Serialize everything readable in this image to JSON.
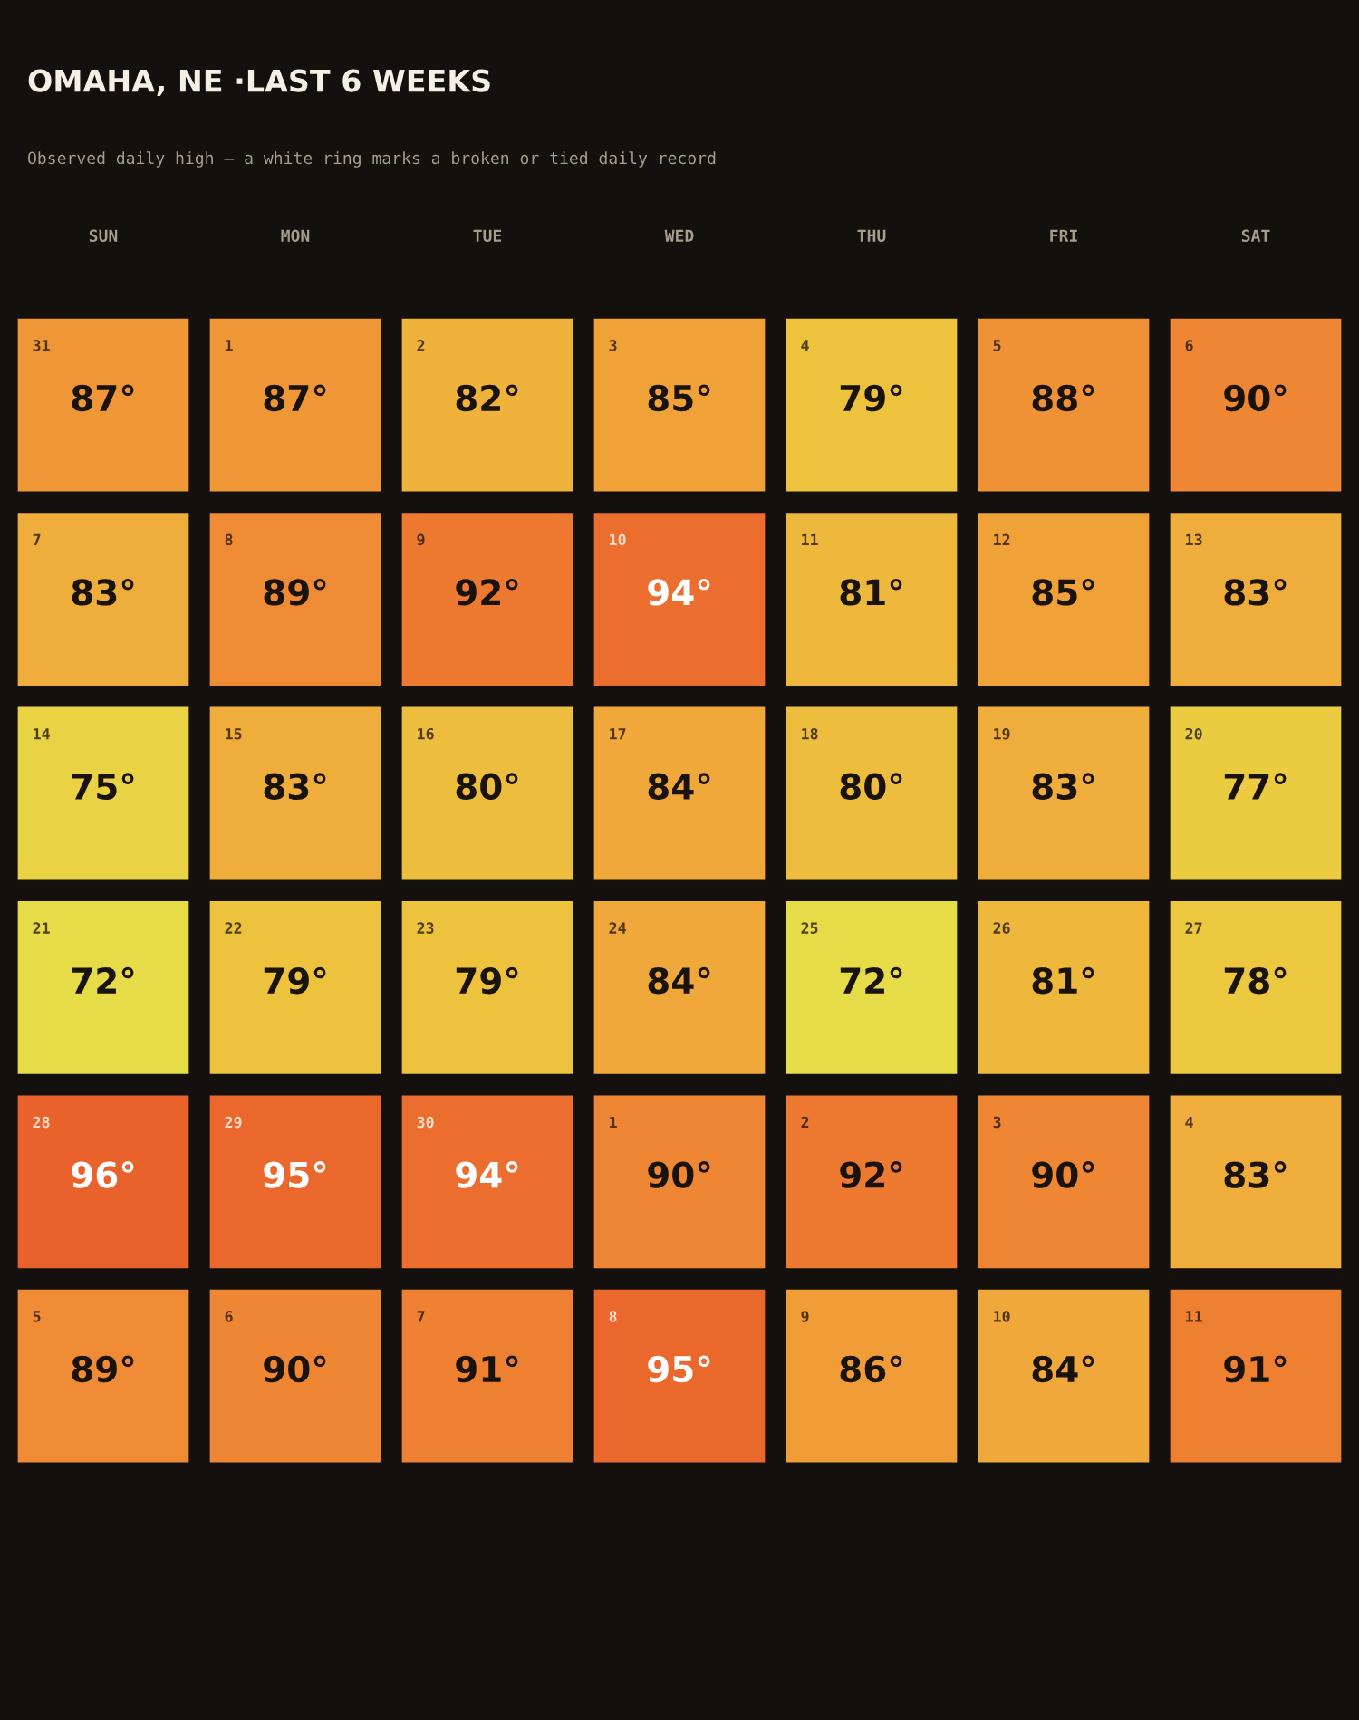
{
  "chart_data": {
    "type": "heatmap",
    "title": "OMAHA, NE ·LAST 6 WEEKS",
    "subtitle": "Observed daily high — a white ring marks a broken or tied daily record",
    "categories": [
      "SUN",
      "MON",
      "TUE",
      "WED",
      "THU",
      "FRI",
      "SAT"
    ],
    "y_categories": [
      null,
      null,
      null,
      null,
      null,
      null
    ],
    "cells": [
      [
        87,
        87,
        82,
        85,
        79,
        88,
        90
      ],
      [
        83,
        89,
        92,
        94,
        81,
        85,
        83
      ],
      [
        75,
        83,
        80,
        84,
        80,
        83,
        77
      ],
      [
        72,
        79,
        79,
        84,
        72,
        81,
        78
      ],
      [
        96,
        95,
        94,
        90,
        92,
        90,
        83
      ],
      [
        89,
        90,
        91,
        95,
        86,
        84,
        91
      ]
    ],
    "cell_labels": [
      [
        "87°",
        "87°",
        "82°",
        "85°",
        "79°",
        "88°",
        "90°"
      ],
      [
        "83°",
        "89°",
        "92°",
        "94°",
        "81°",
        "85°",
        "83°"
      ],
      [
        "75°",
        "83°",
        "80°",
        "84°",
        "80°",
        "83°",
        "77°"
      ],
      [
        "72°",
        "79°",
        "79°",
        "84°",
        "72°",
        "81°",
        "78°"
      ],
      [
        "96°",
        "95°",
        "94°",
        "90°",
        "92°",
        "90°",
        "83°"
      ],
      [
        "89°",
        "90°",
        "91°",
        "95°",
        "86°",
        "84°",
        "91°"
      ]
    ],
    "annotations": [
      "31",
      "1",
      "2",
      "3",
      "4",
      "5",
      "6",
      "7",
      "8",
      "9",
      "10",
      "11",
      "12",
      "13",
      "14",
      "15",
      "16",
      "17",
      "18",
      "19",
      "20",
      "21",
      "22",
      "23",
      "24",
      "25",
      "26",
      "27",
      "28",
      "29",
      "30",
      "1",
      "2",
      "3",
      "4",
      "5",
      "6",
      "7",
      "8",
      "9",
      "10",
      "11"
    ]
  }
}
